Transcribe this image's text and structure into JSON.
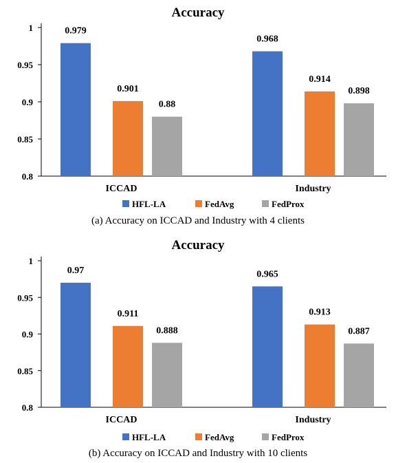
{
  "chart_data": [
    {
      "type": "bar",
      "title": "Accuracy",
      "caption": "(a) Accuracy on ICCAD and Industry with 4 clients",
      "categories": [
        "ICCAD",
        "Industry"
      ],
      "series": [
        {
          "name": "HFL-LA",
          "color": "#4472C4",
          "values": [
            0.979,
            0.968
          ],
          "labels": [
            "0.979",
            "0.968"
          ]
        },
        {
          "name": "FedAvg",
          "color": "#ED7D31",
          "values": [
            0.901,
            0.914
          ],
          "labels": [
            "0.901",
            "0.914"
          ]
        },
        {
          "name": "FedProx",
          "color": "#A5A5A5",
          "values": [
            0.88,
            0.898
          ],
          "labels": [
            "0.88",
            "0.898"
          ]
        }
      ],
      "ylim": [
        0.8,
        1
      ],
      "yticks": [
        "0.8",
        "0.85",
        "0.9",
        "0.95",
        "1"
      ],
      "grid": false,
      "legend": "bottom"
    },
    {
      "type": "bar",
      "title": "Accuracy",
      "caption": "(b) Accuracy on ICCAD and Industry with 10 clients",
      "categories": [
        "ICCAD",
        "Industry"
      ],
      "series": [
        {
          "name": "HFL-LA",
          "color": "#4472C4",
          "values": [
            0.97,
            0.965
          ],
          "labels": [
            "0.97",
            "0.965"
          ]
        },
        {
          "name": "FedAvg",
          "color": "#ED7D31",
          "values": [
            0.911,
            0.913
          ],
          "labels": [
            "0.911",
            "0.913"
          ]
        },
        {
          "name": "FedProx",
          "color": "#A5A5A5",
          "values": [
            0.888,
            0.887
          ],
          "labels": [
            "0.888",
            "0.887"
          ]
        }
      ],
      "ylim": [
        0.8,
        1
      ],
      "yticks": [
        "0.8",
        "0.85",
        "0.9",
        "0.95",
        "1"
      ],
      "grid": false,
      "legend": "bottom"
    }
  ]
}
